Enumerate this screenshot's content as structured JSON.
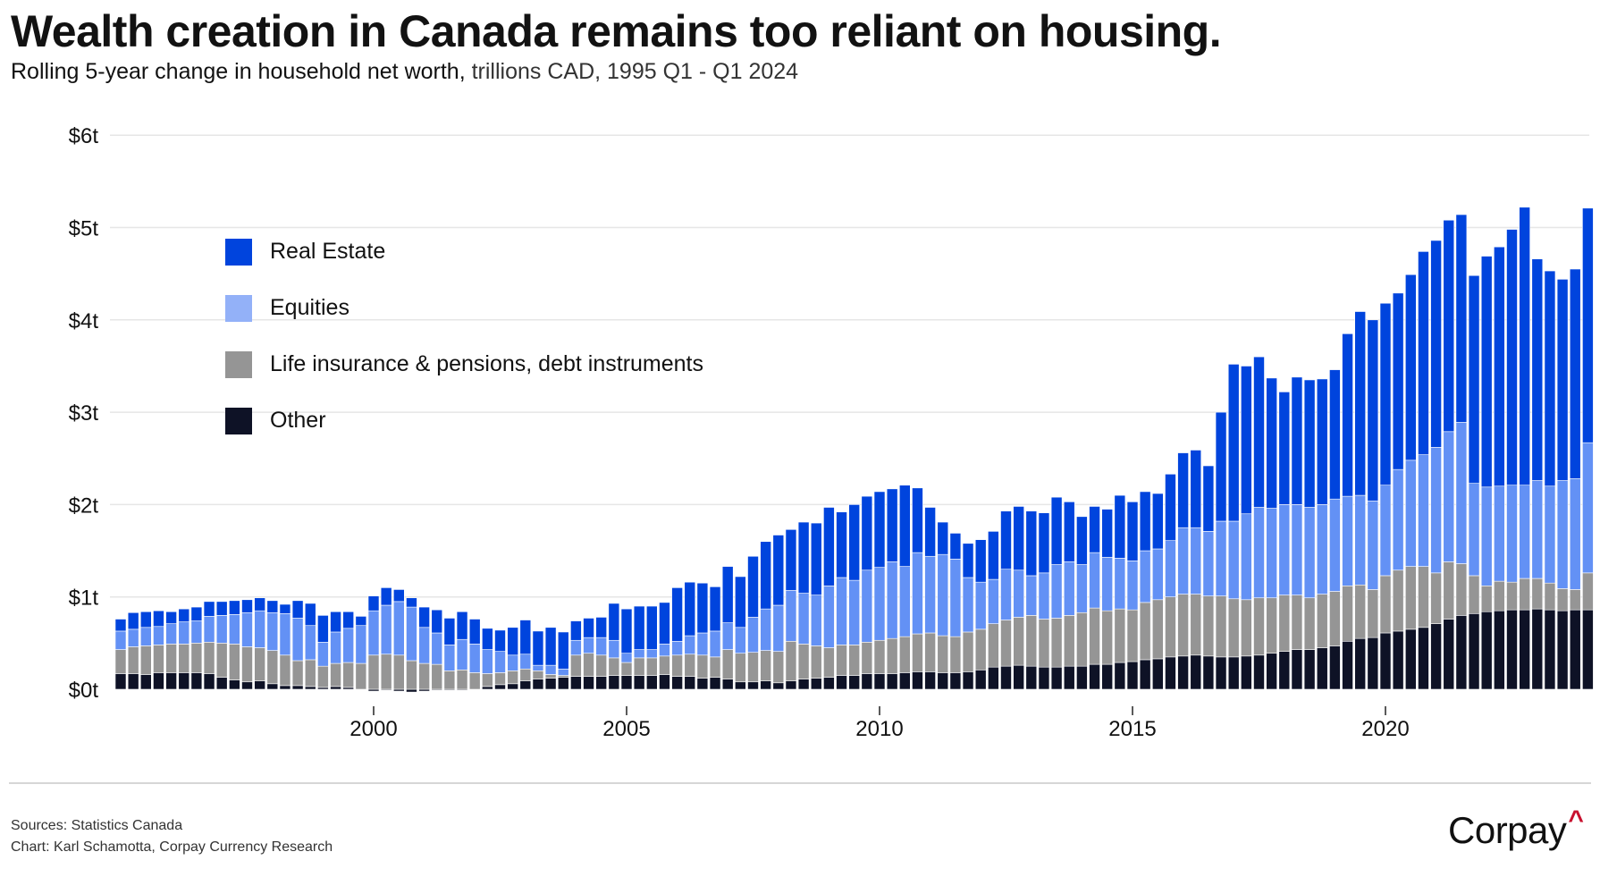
{
  "header": {
    "title": "Wealth creation in Canada remains too reliant on housing.",
    "subtitle_bold": "Rolling 5-year change in household net worth,",
    "subtitle_rest": " trillions CAD, 1995 Q1 - Q1 2024"
  },
  "footer": {
    "sources": "Sources: Statistics Canada",
    "credit": "Chart: Karl Schamotta, Corpay Currency Research",
    "logo_text": "Corpay",
    "logo_mark": "^"
  },
  "colors": {
    "real_estate": "#0044DD",
    "equities": "#6391F5",
    "life_pensions": "#959595",
    "other": "#0E1226",
    "legend_equities": "#93B1F8",
    "grid": "#e6e6e6"
  },
  "chart_data": {
    "type": "bar",
    "stacked": true,
    "title": "Wealth creation in Canada remains too reliant on housing.",
    "subtitle": "Rolling 5-year change in household net worth, trillions CAD, 1995 Q1 - Q1 2024",
    "xlabel": "",
    "ylabel": "",
    "ylim": [
      0,
      6.2
    ],
    "yticks": [
      0,
      1,
      2,
      3,
      4,
      5,
      6
    ],
    "ytick_labels": [
      "$0t",
      "$1t",
      "$2t",
      "$3t",
      "$4t",
      "$5t",
      "$6t"
    ],
    "xticks": [
      2000,
      2005,
      2010,
      2015,
      2020
    ],
    "xtick_labels": [
      "2000",
      "2005",
      "2010",
      "2015",
      "2020"
    ],
    "grid": true,
    "legend_position": "top-left",
    "start_year": 1995,
    "start_quarter": 1,
    "series": [
      {
        "name": "Other",
        "key": "other",
        "values": [
          0.17,
          0.17,
          0.16,
          0.18,
          0.18,
          0.18,
          0.18,
          0.17,
          0.13,
          0.1,
          0.08,
          0.09,
          0.06,
          0.04,
          0.04,
          0.03,
          0.02,
          0.03,
          0.02,
          0,
          -0.02,
          -0.01,
          -0.02,
          -0.03,
          -0.02,
          -0.01,
          -0.01,
          -0.01,
          0,
          0.03,
          0.05,
          0.06,
          0.09,
          0.11,
          0.12,
          0.13,
          0.14,
          0.14,
          0.14,
          0.15,
          0.15,
          0.15,
          0.15,
          0.16,
          0.14,
          0.14,
          0.12,
          0.13,
          0.11,
          0.08,
          0.08,
          0.09,
          0.07,
          0.09,
          0.11,
          0.12,
          0.13,
          0.15,
          0.15,
          0.17,
          0.17,
          0.17,
          0.18,
          0.19,
          0.19,
          0.18,
          0.18,
          0.19,
          0.21,
          0.24,
          0.25,
          0.26,
          0.25,
          0.24,
          0.24,
          0.25,
          0.25,
          0.27,
          0.27,
          0.29,
          0.3,
          0.32,
          0.33,
          0.35,
          0.36,
          0.37,
          0.36,
          0.35,
          0.35,
          0.36,
          0.37,
          0.39,
          0.41,
          0.43,
          0.43,
          0.45,
          0.47,
          0.52,
          0.55,
          0.56,
          0.61,
          0.63,
          0.65,
          0.67,
          0.71,
          0.76,
          0.8,
          0.82,
          0.84,
          0.85,
          0.86,
          0.86,
          0.87,
          0.86,
          0.85,
          0.86,
          0.86
        ]
      },
      {
        "name": "Life insurance & pensions, debt instruments",
        "key": "life_pensions",
        "values": [
          0.26,
          0.29,
          0.31,
          0.3,
          0.31,
          0.31,
          0.32,
          0.34,
          0.37,
          0.39,
          0.38,
          0.36,
          0.36,
          0.33,
          0.27,
          0.29,
          0.23,
          0.25,
          0.27,
          0.28,
          0.37,
          0.38,
          0.37,
          0.31,
          0.28,
          0.27,
          0.2,
          0.21,
          0.18,
          0.14,
          0.13,
          0.14,
          0.13,
          0.09,
          0.04,
          0.02,
          0.23,
          0.25,
          0.23,
          0.19,
          0.14,
          0.19,
          0.19,
          0.2,
          0.23,
          0.24,
          0.25,
          0.22,
          0.32,
          0.31,
          0.32,
          0.33,
          0.34,
          0.43,
          0.38,
          0.35,
          0.32,
          0.33,
          0.33,
          0.34,
          0.36,
          0.38,
          0.39,
          0.41,
          0.42,
          0.4,
          0.39,
          0.43,
          0.44,
          0.47,
          0.5,
          0.52,
          0.55,
          0.52,
          0.53,
          0.55,
          0.58,
          0.61,
          0.58,
          0.58,
          0.56,
          0.62,
          0.64,
          0.65,
          0.67,
          0.66,
          0.65,
          0.66,
          0.63,
          0.61,
          0.62,
          0.6,
          0.61,
          0.59,
          0.56,
          0.58,
          0.59,
          0.6,
          0.58,
          0.52,
          0.62,
          0.66,
          0.68,
          0.66,
          0.55,
          0.62,
          0.56,
          0.41,
          0.28,
          0.32,
          0.3,
          0.34,
          0.33,
          0.29,
          0.24,
          0.22,
          0.4
        ]
      },
      {
        "name": "Equities",
        "key": "equities",
        "values": [
          0.2,
          0.19,
          0.2,
          0.2,
          0.22,
          0.24,
          0.24,
          0.28,
          0.3,
          0.32,
          0.37,
          0.4,
          0.41,
          0.45,
          0.46,
          0.37,
          0.26,
          0.34,
          0.37,
          0.41,
          0.48,
          0.53,
          0.58,
          0.58,
          0.39,
          0.34,
          0.28,
          0.33,
          0.31,
          0.26,
          0.23,
          0.17,
          0.16,
          0.06,
          0.1,
          0.07,
          0.16,
          0.17,
          0.19,
          0.19,
          0.1,
          0.09,
          0.09,
          0.13,
          0.15,
          0.2,
          0.24,
          0.28,
          0.29,
          0.28,
          0.38,
          0.45,
          0.5,
          0.55,
          0.55,
          0.55,
          0.67,
          0.73,
          0.7,
          0.78,
          0.79,
          0.83,
          0.76,
          0.88,
          0.83,
          0.88,
          0.84,
          0.59,
          0.51,
          0.48,
          0.55,
          0.51,
          0.43,
          0.5,
          0.58,
          0.58,
          0.52,
          0.6,
          0.58,
          0.55,
          0.53,
          0.56,
          0.55,
          0.61,
          0.72,
          0.72,
          0.7,
          0.81,
          0.84,
          0.93,
          0.98,
          0.97,
          0.98,
          0.98,
          0.98,
          0.97,
          1.0,
          0.97,
          0.97,
          0.96,
          0.98,
          1.09,
          1.15,
          1.21,
          1.36,
          1.41,
          1.53,
          1.0,
          1.07,
          1.03,
          1.05,
          1.01,
          1.06,
          1.05,
          1.17,
          1.2,
          1.41
        ]
      },
      {
        "name": "Real Estate",
        "key": "real_estate",
        "values": [
          0.13,
          0.18,
          0.17,
          0.17,
          0.13,
          0.14,
          0.15,
          0.16,
          0.15,
          0.15,
          0.14,
          0.14,
          0.13,
          0.1,
          0.19,
          0.24,
          0.29,
          0.22,
          0.18,
          0.1,
          0.16,
          0.19,
          0.13,
          0.1,
          0.22,
          0.25,
          0.29,
          0.3,
          0.27,
          0.23,
          0.23,
          0.3,
          0.37,
          0.37,
          0.41,
          0.4,
          0.21,
          0.21,
          0.22,
          0.4,
          0.48,
          0.47,
          0.47,
          0.45,
          0.58,
          0.58,
          0.54,
          0.48,
          0.61,
          0.55,
          0.66,
          0.73,
          0.76,
          0.66,
          0.77,
          0.78,
          0.85,
          0.71,
          0.82,
          0.8,
          0.82,
          0.79,
          0.88,
          0.7,
          0.53,
          0.35,
          0.28,
          0.37,
          0.46,
          0.52,
          0.63,
          0.69,
          0.7,
          0.65,
          0.73,
          0.65,
          0.52,
          0.5,
          0.52,
          0.68,
          0.64,
          0.64,
          0.6,
          0.72,
          0.81,
          0.84,
          0.71,
          1.18,
          1.7,
          1.6,
          1.63,
          1.41,
          1.22,
          1.38,
          1.38,
          1.36,
          1.4,
          1.76,
          1.99,
          1.96,
          1.97,
          1.91,
          2.01,
          2.2,
          2.24,
          2.29,
          2.25,
          2.25,
          2.5,
          2.59,
          2.77,
          3.01,
          2.4,
          2.33,
          2.18,
          2.27,
          2.54
        ]
      }
    ]
  }
}
